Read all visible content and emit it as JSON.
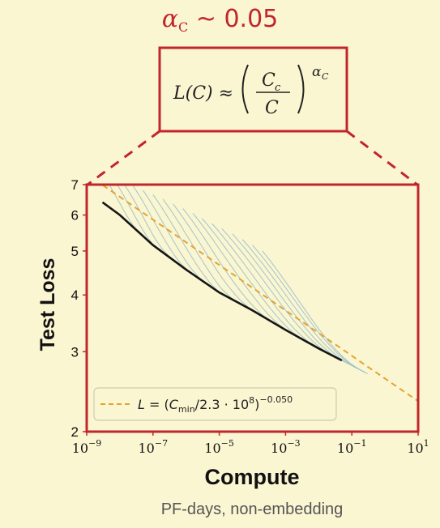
{
  "headline": {
    "alpha_symbol": "α",
    "alpha_subscript": "C",
    "approx_value": " ~ 0.05"
  },
  "formula": {
    "lhs": "L(C) ≈",
    "numerator": "C",
    "numerator_sub": "c",
    "denominator": "C",
    "exponent": "α",
    "exponent_sub": "C"
  },
  "colors": {
    "accent_red": "#c0262b",
    "background": "#fbf6d2",
    "envelope": "#151515",
    "fit": "#e2a431",
    "curves": "#8fb8c8"
  },
  "chart_data": {
    "type": "line",
    "xlabel": "Compute",
    "xlabel_note": "PF-days, non-embedding",
    "ylabel": "Test Loss",
    "x_scale": "log",
    "y_scale": "log",
    "xlim": [
      1e-09,
      10
    ],
    "ylim": [
      2,
      7
    ],
    "x_ticks": [
      {
        "value": 1e-09,
        "base": "10",
        "exp": "−9"
      },
      {
        "value": 1e-07,
        "base": "10",
        "exp": "−7"
      },
      {
        "value": 1e-05,
        "base": "10",
        "exp": "−5"
      },
      {
        "value": 0.001,
        "base": "10",
        "exp": "−3"
      },
      {
        "value": 0.1,
        "base": "10",
        "exp": "−1"
      },
      {
        "value": 10,
        "base": "10",
        "exp": "1"
      }
    ],
    "y_ticks": [
      {
        "value": 2,
        "label": "2"
      },
      {
        "value": 3,
        "label": "3"
      },
      {
        "value": 4,
        "label": "4"
      },
      {
        "value": 5,
        "label": "5"
      },
      {
        "value": 6,
        "label": "6"
      },
      {
        "value": 7,
        "label": "7"
      }
    ],
    "fit": {
      "label_parts": {
        "L": "L",
        "eq": " = (",
        "C": "C",
        "sub": "min",
        "rest": "/2.3 · 10",
        "pow8": "8",
        "close": ")",
        "exp": "−0.050"
      },
      "c_min": 230000000.0,
      "exponent": -0.05,
      "style": "dashed"
    },
    "envelope": {
      "x": [
        3e-09,
        1e-08,
        1e-07,
        1e-06,
        1e-05,
        0.0001,
        0.001,
        0.01,
        0.05
      ],
      "y": [
        6.4,
        6.0,
        5.15,
        4.55,
        4.05,
        3.7,
        3.35,
        3.05,
        2.87
      ]
    },
    "training_curves": [
      {
        "start": 3e-09,
        "x_end": 6e-08
      },
      {
        "start": 6e-09,
        "x_end": 2e-07
      },
      {
        "start": 1.2e-08,
        "x_end": 6e-07
      },
      {
        "start": 2.5e-08,
        "x_end": 2e-06
      },
      {
        "start": 5e-08,
        "x_end": 6e-06
      },
      {
        "start": 1e-07,
        "x_end": 2e-05
      },
      {
        "start": 2e-07,
        "x_end": 6e-05
      },
      {
        "start": 4e-07,
        "x_end": 0.0002
      },
      {
        "start": 8e-07,
        "x_end": 0.0006
      },
      {
        "start": 1.6e-06,
        "x_end": 0.002
      },
      {
        "start": 3e-06,
        "x_end": 0.006
      },
      {
        "start": 6e-06,
        "x_end": 0.015
      },
      {
        "start": 1.2e-05,
        "x_end": 0.04
      },
      {
        "start": 2.5e-05,
        "x_end": 0.08
      },
      {
        "start": 5e-05,
        "x_end": 0.15
      },
      {
        "start": 0.0001,
        "x_end": 0.25
      },
      {
        "start": 0.0002,
        "x_end": 0.3
      }
    ],
    "legend": "bottom-left",
    "grid": false
  }
}
